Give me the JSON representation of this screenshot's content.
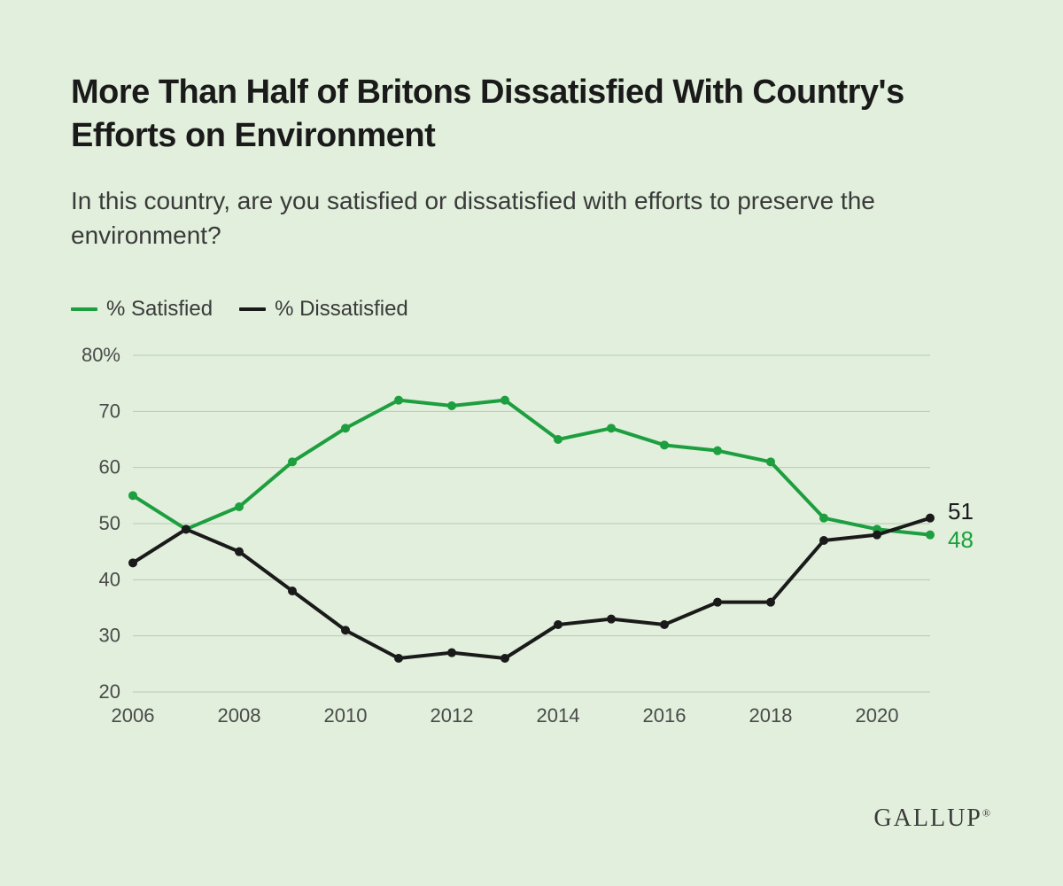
{
  "chart": {
    "type": "line",
    "title": "More Than Half of Britons Dissatisfied With Country's Efforts on Environment",
    "subtitle": "In this country, are you satisfied or dissatisfied with efforts to preserve the environment?",
    "title_fontsize": 38,
    "subtitle_fontsize": 28,
    "background_color": "#e1efdc",
    "grid_color": "#b8ccb2",
    "text_color": "#3a3a3a",
    "axis_label_fontsize": 22,
    "end_label_fontsize": 26,
    "line_width": 4,
    "marker_radius": 5,
    "x": {
      "years": [
        2006,
        2007,
        2008,
        2009,
        2010,
        2011,
        2012,
        2013,
        2014,
        2015,
        2016,
        2017,
        2018,
        2019,
        2020,
        2021
      ],
      "tick_years": [
        2006,
        2008,
        2010,
        2012,
        2014,
        2016,
        2018,
        2020
      ],
      "min": 2006,
      "max": 2021
    },
    "y": {
      "min": 20,
      "max": 80,
      "ticks": [
        20,
        30,
        40,
        50,
        60,
        70,
        80
      ],
      "suffix_first": "%"
    },
    "series": [
      {
        "name": "% Satisfied",
        "color": "#1d9e3f",
        "legend_swatch_color": "#1d9e3f",
        "values": [
          55,
          49,
          53,
          61,
          67,
          72,
          71,
          72,
          65,
          67,
          64,
          63,
          61,
          51,
          49,
          48
        ],
        "end_label": "48",
        "end_label_color": "#1d9e3f"
      },
      {
        "name": "% Dissatisfied",
        "color": "#1a1a1a",
        "legend_swatch_color": "#1a1a1a",
        "values": [
          43,
          49,
          45,
          38,
          31,
          26,
          27,
          26,
          32,
          33,
          32,
          36,
          36,
          47,
          48,
          51
        ],
        "end_label": "51",
        "end_label_color": "#1a1a1a"
      }
    ],
    "legend_fontsize": 24
  },
  "brand": {
    "text": "GALLUP",
    "fontsize": 28
  }
}
